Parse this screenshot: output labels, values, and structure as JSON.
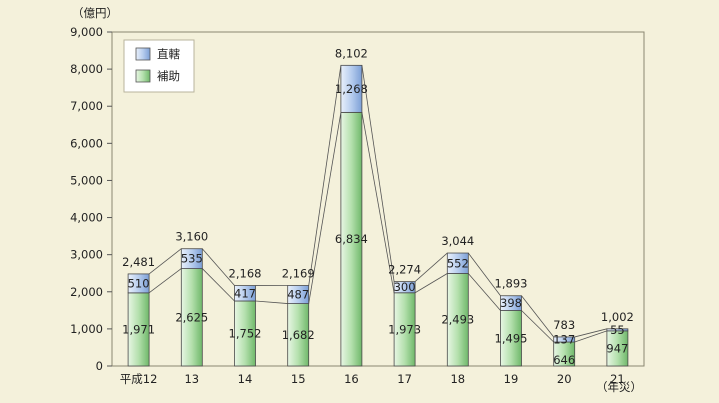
{
  "chart_data": {
    "type": "bar",
    "stacked": true,
    "title": "",
    "ylabel": "（億円）",
    "xlabel_suffix": "（年災）",
    "ylim": [
      0,
      9000
    ],
    "yticks": [
      "0",
      "1,000",
      "2,000",
      "3,000",
      "4,000",
      "5,000",
      "6,000",
      "7,000",
      "8,000",
      "9,000"
    ],
    "categories": [
      "平成12",
      "13",
      "14",
      "15",
      "16",
      "17",
      "18",
      "19",
      "20",
      "21"
    ],
    "series": [
      {
        "name": "補助",
        "color": "#9fd39a",
        "values": [
          1971,
          2625,
          1752,
          1682,
          6834,
          1973,
          2493,
          1495,
          646,
          947
        ],
        "labels": [
          "1,971",
          "2,625",
          "1,752",
          "1,682",
          "6,834",
          "1,973",
          "2,493",
          "1,495",
          "646",
          "947"
        ]
      },
      {
        "name": "直轄",
        "color": "#a9c4ea",
        "values": [
          510,
          535,
          417,
          487,
          1268,
          300,
          552,
          398,
          137,
          55
        ],
        "labels": [
          "510",
          "535",
          "417",
          "487",
          "1,268",
          "300",
          "552",
          "398",
          "137",
          "55"
        ]
      }
    ],
    "totals": [
      2481,
      3160,
      2168,
      2169,
      8102,
      2274,
      3044,
      1893,
      783,
      1002
    ],
    "total_labels": [
      "2,481",
      "3,160",
      "2,168",
      "2,169",
      "8,102",
      "2,274",
      "3,044",
      "1,893",
      "783",
      "1,002"
    ],
    "legend_position": "top-left",
    "grid": false
  }
}
